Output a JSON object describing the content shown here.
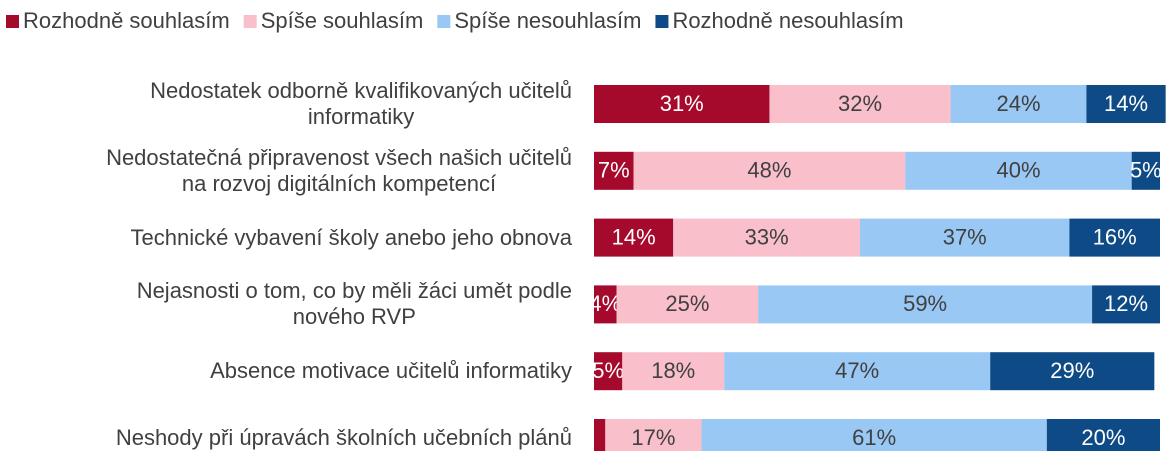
{
  "chart_data": {
    "type": "stacked-bar-horizontal",
    "categories": [
      "Nedostatek odborně kvalifikovaných učitelů\ninformatiky",
      "Nedostatečná připravenost všech našich učitelů\nna rozvoj digitálních kompetencí",
      "Technické vybavení školy anebo jeho obnova",
      "Nejasnosti o tom, co by měli žáci umět podle\nnového RVP",
      "Absence motivace učitelů informatiky",
      "Neshody při úpravách školních učebních plánů"
    ],
    "series": [
      {
        "name": "Rozhodně souhlasím",
        "color": "#a50a2d",
        "label_color": "#ffffff",
        "values": [
          31,
          7,
          14,
          4,
          5,
          2
        ],
        "value_labels": [
          "31%",
          "7%",
          "14%",
          "4%",
          "5%",
          null
        ]
      },
      {
        "name": "Spíše souhlasím",
        "color": "#f9bfcb",
        "label_color": "#404040",
        "values": [
          32,
          48,
          33,
          25,
          18,
          17
        ],
        "value_labels": [
          "32%",
          "48%",
          "33%",
          "25%",
          "18%",
          "17%"
        ]
      },
      {
        "name": "Spíše nesouhlasím",
        "color": "#9ac8f4",
        "label_color": "#404040",
        "values": [
          24,
          40,
          37,
          59,
          47,
          61
        ],
        "value_labels": [
          "24%",
          "40%",
          "37%",
          "59%",
          "47%",
          "61%"
        ]
      },
      {
        "name": "Rozhodně nesouhlasím",
        "color": "#0e4a85",
        "label_color": "#ffffff",
        "values": [
          14,
          5,
          16,
          12,
          29,
          20
        ],
        "value_labels": [
          "14%",
          "5%",
          "16%",
          "12%",
          "29%",
          "20%"
        ]
      }
    ],
    "xlim": [
      0,
      100
    ],
    "legend": "top"
  }
}
